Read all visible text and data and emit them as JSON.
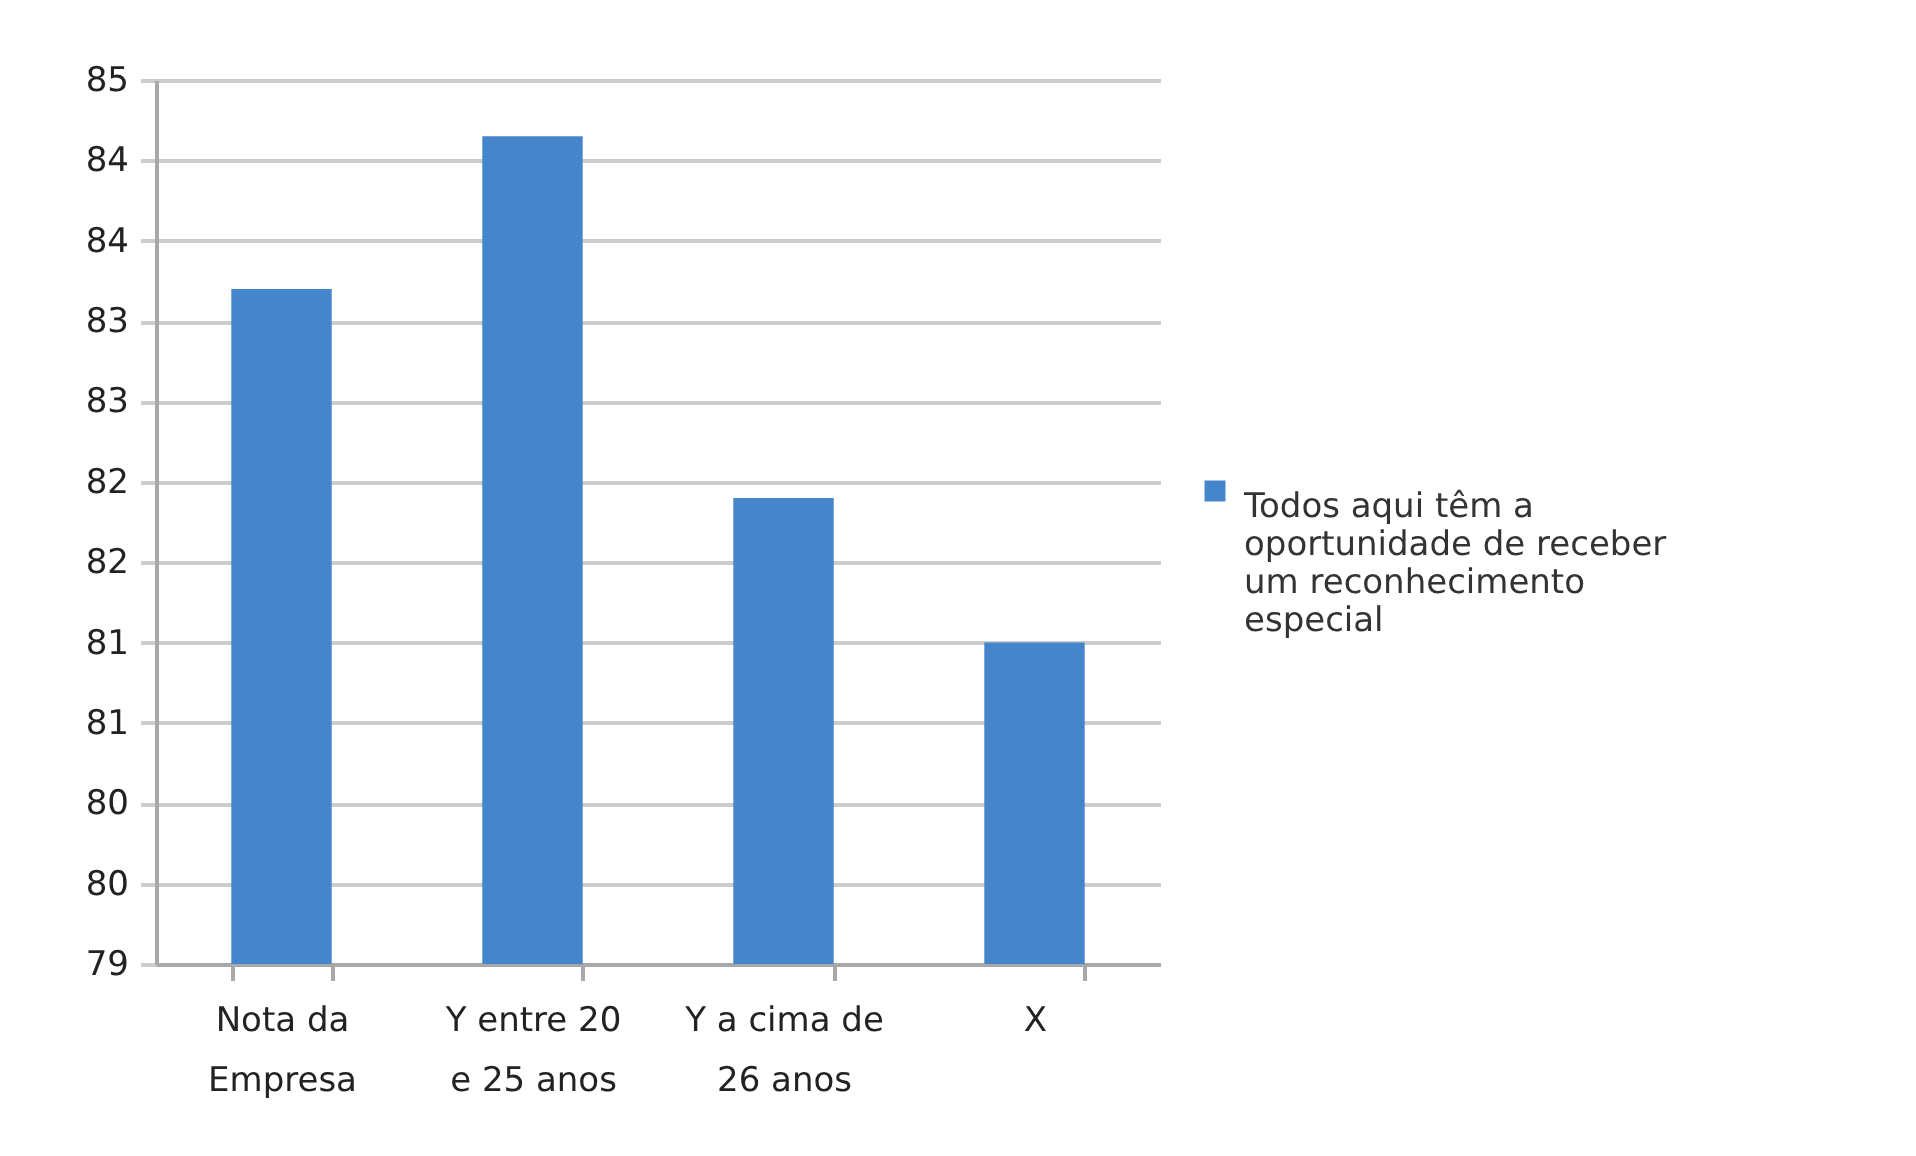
{
  "chart_data": {
    "type": "bar",
    "categories": [
      "Nota da Empresa",
      "Y entre 20 e 25 anos",
      "Y a cima de 26 anos",
      "X"
    ],
    "series": [
      {
        "name": "Todos aqui têm a oportunidade de receber um reconhecimento especial",
        "color": "#4485cb",
        "values": [
          83.2,
          84.15,
          81.9,
          81.0
        ]
      }
    ],
    "ylim": [
      79,
      84.5
    ],
    "yticks": [
      79,
      {
        "value": 79.5,
        "label": "80"
      },
      80,
      {
        "value": 80.5,
        "label": "81"
      },
      81,
      {
        "value": 81.5,
        "label": "82"
      },
      82,
      {
        "value": 82.5,
        "label": "83"
      },
      83,
      {
        "value": 83.5,
        "label": "84"
      },
      84,
      {
        "value": 84.5,
        "label": "85"
      }
    ],
    "grid": "y",
    "legend": "right"
  }
}
